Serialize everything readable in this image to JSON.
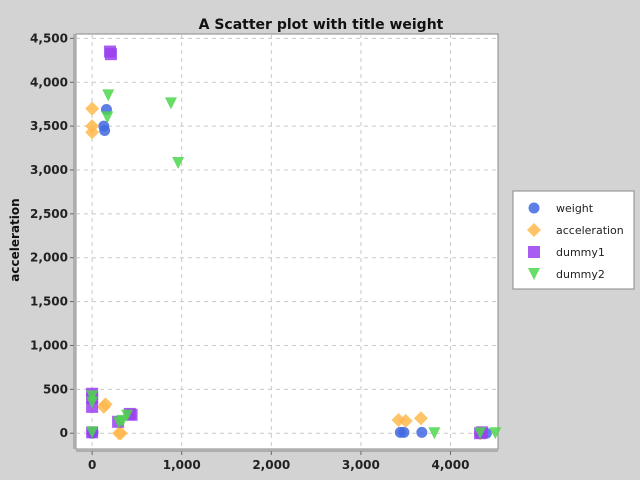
{
  "chart_data": {
    "type": "scatter",
    "title": "A Scatter plot with title weight",
    "xlabel": "",
    "ylabel": "acceleration",
    "xlim": [
      -180,
      4530
    ],
    "ylim": [
      -180,
      4550
    ],
    "x_ticks": [
      0,
      1000,
      2000,
      3000,
      4000
    ],
    "x_tick_labels": [
      "0",
      "1,000",
      "2,000",
      "3,000",
      "4,000"
    ],
    "y_ticks": [
      0,
      500,
      1000,
      1500,
      2000,
      2500,
      3000,
      3500,
      4000,
      4500
    ],
    "y_tick_labels": [
      "0",
      "500",
      "1,000",
      "1,500",
      "2,000",
      "2,500",
      "3,000",
      "3,500",
      "4,000",
      "4,500"
    ],
    "grid": true,
    "legend_position": "right",
    "series": [
      {
        "name": "weight",
        "marker": "circle",
        "color": "#4169e1",
        "points": [
          [
            160,
            3690
          ],
          [
            130,
            3500
          ],
          [
            140,
            3450
          ],
          [
            10,
            10
          ],
          [
            0,
            0
          ],
          [
            3440,
            10
          ],
          [
            3480,
            10
          ],
          [
            3680,
            10
          ],
          [
            4330,
            0
          ],
          [
            4400,
            0
          ]
        ]
      },
      {
        "name": "acceleration",
        "marker": "diamond",
        "color": "#ffb84d",
        "points": [
          [
            0,
            3700
          ],
          [
            0,
            3500
          ],
          [
            0,
            3430
          ],
          [
            150,
            330
          ],
          [
            130,
            300
          ],
          [
            300,
            0
          ],
          [
            320,
            0
          ],
          [
            3420,
            150
          ],
          [
            3500,
            140
          ],
          [
            3670,
            170
          ],
          [
            4330,
            0
          ]
        ]
      },
      {
        "name": "dummy1",
        "marker": "square",
        "color": "#9a3ff0",
        "points": [
          [
            200,
            4350
          ],
          [
            210,
            4320
          ],
          [
            0,
            450
          ],
          [
            0,
            400
          ],
          [
            0,
            300
          ],
          [
            0,
            10
          ],
          [
            290,
            130
          ],
          [
            420,
            220
          ],
          [
            440,
            210
          ],
          [
            4330,
            0
          ],
          [
            4350,
            10
          ]
        ]
      },
      {
        "name": "dummy2",
        "marker": "triangle-down",
        "color": "#4cd64c",
        "points": [
          [
            880,
            3760
          ],
          [
            960,
            3080
          ],
          [
            180,
            3850
          ],
          [
            170,
            3600
          ],
          [
            0,
            420
          ],
          [
            0,
            350
          ],
          [
            0,
            10
          ],
          [
            300,
            120
          ],
          [
            340,
            140
          ],
          [
            390,
            200
          ],
          [
            3820,
            0
          ],
          [
            4330,
            0
          ],
          [
            4500,
            0
          ]
        ]
      }
    ]
  }
}
